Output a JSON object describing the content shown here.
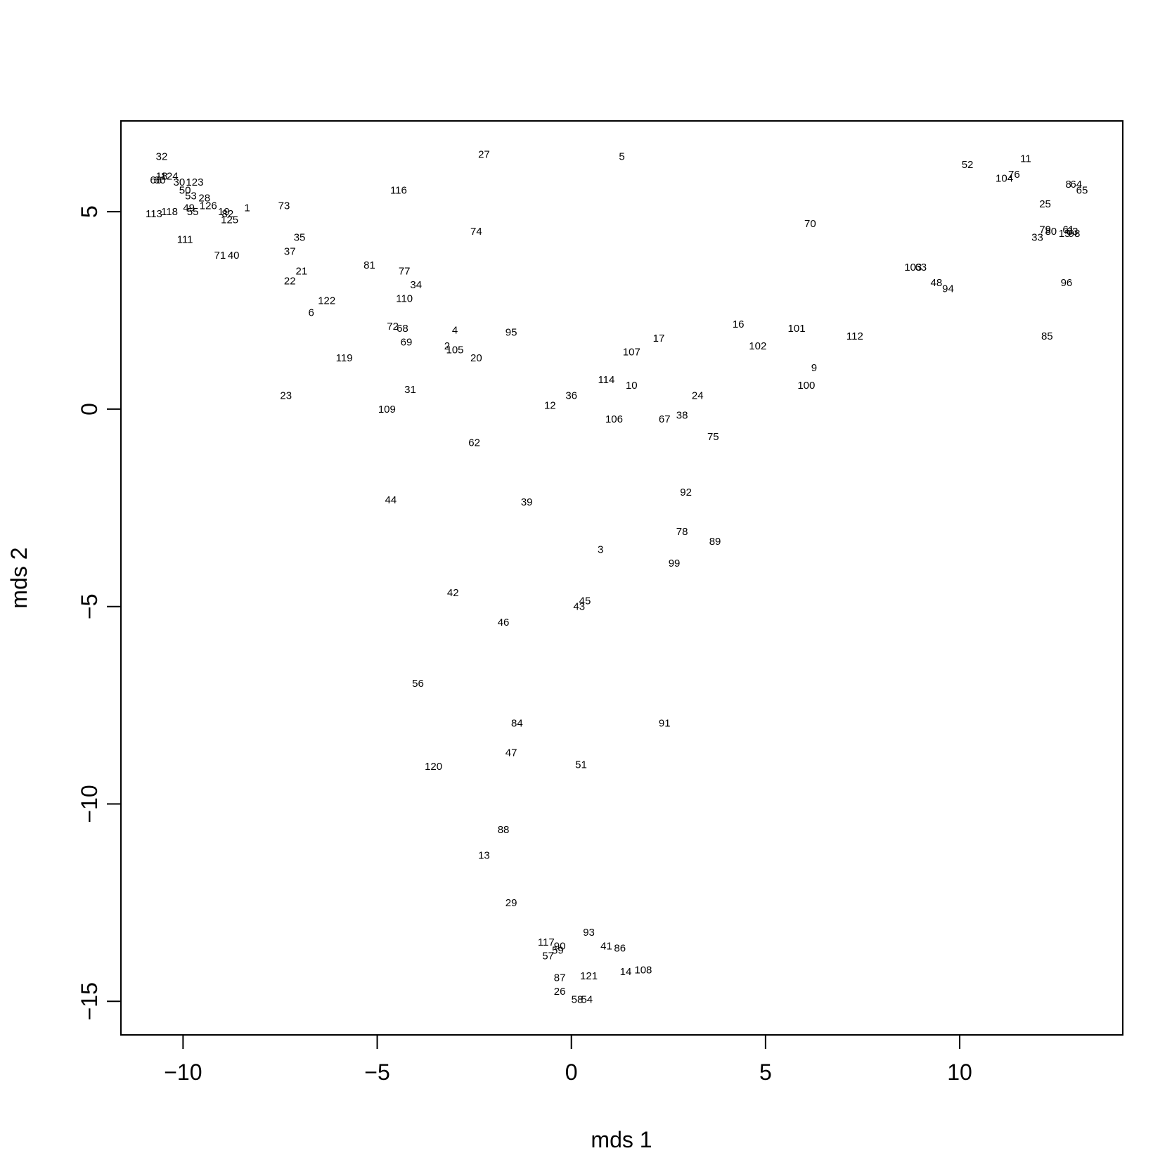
{
  "chart_data": {
    "type": "scatter",
    "title": "",
    "xlabel": "mds 1",
    "ylabel": "mds 2",
    "xlim": [
      -11.6,
      14.2
    ],
    "ylim": [
      -15.85,
      7.3
    ],
    "x_ticks": [
      -10,
      -5,
      0,
      5,
      10
    ],
    "y_ticks": [
      -15,
      -10,
      -5,
      0,
      5
    ],
    "x_tick_labels": [
      "−10",
      "−5",
      "0",
      "5",
      "10"
    ],
    "y_tick_labels": [
      "−15",
      "−10",
      "−5",
      "0",
      "5"
    ],
    "grid": false,
    "marker": "text labels",
    "points": [
      {
        "label": "1",
        "x": -8.35,
        "y": 5.1
      },
      {
        "label": "2",
        "x": -3.2,
        "y": 1.6
      },
      {
        "label": "3",
        "x": 0.75,
        "y": -3.55
      },
      {
        "label": "4",
        "x": -3.0,
        "y": 2.0
      },
      {
        "label": "5",
        "x": 1.3,
        "y": 6.4
      },
      {
        "label": "6",
        "x": -6.7,
        "y": 2.45
      },
      {
        "label": "8",
        "x": 12.8,
        "y": 5.7
      },
      {
        "label": "9",
        "x": 6.25,
        "y": 1.05
      },
      {
        "label": "10",
        "x": 1.55,
        "y": 0.6
      },
      {
        "label": "11",
        "x": 11.7,
        "y": 6.35
      },
      {
        "label": "12",
        "x": -0.55,
        "y": 0.1
      },
      {
        "label": "13",
        "x": -2.25,
        "y": -11.3
      },
      {
        "label": "14",
        "x": 1.4,
        "y": -14.25
      },
      {
        "label": "15",
        "x": 12.7,
        "y": 4.45
      },
      {
        "label": "16",
        "x": 4.3,
        "y": 2.15
      },
      {
        "label": "17",
        "x": 2.25,
        "y": 1.8
      },
      {
        "label": "18",
        "x": -10.55,
        "y": 5.9
      },
      {
        "label": "19",
        "x": -8.95,
        "y": 5.0
      },
      {
        "label": "20",
        "x": -2.45,
        "y": 1.3
      },
      {
        "label": "21",
        "x": -6.95,
        "y": 3.5
      },
      {
        "label": "22",
        "x": -7.25,
        "y": 3.25
      },
      {
        "label": "23",
        "x": -7.35,
        "y": 0.35
      },
      {
        "label": "24",
        "x": 3.25,
        "y": 0.35
      },
      {
        "label": "25",
        "x": 12.2,
        "y": 5.2
      },
      {
        "label": "26",
        "x": -0.3,
        "y": -14.75
      },
      {
        "label": "27",
        "x": -2.25,
        "y": 6.45
      },
      {
        "label": "28",
        "x": -9.45,
        "y": 5.35
      },
      {
        "label": "29",
        "x": -1.55,
        "y": -12.5
      },
      {
        "label": "30",
        "x": -10.1,
        "y": 5.75
      },
      {
        "label": "31",
        "x": -4.15,
        "y": 0.5
      },
      {
        "label": "32",
        "x": -10.55,
        "y": 6.4
      },
      {
        "label": "33",
        "x": 12.0,
        "y": 4.35
      },
      {
        "label": "34",
        "x": -4.0,
        "y": 3.15
      },
      {
        "label": "35",
        "x": -7.0,
        "y": 4.35
      },
      {
        "label": "36",
        "x": 0.0,
        "y": 0.35
      },
      {
        "label": "37",
        "x": -7.25,
        "y": 4.0
      },
      {
        "label": "38",
        "x": 2.85,
        "y": -0.15
      },
      {
        "label": "39",
        "x": -1.15,
        "y": -2.35
      },
      {
        "label": "40",
        "x": -8.7,
        "y": 3.9
      },
      {
        "label": "41",
        "x": 0.9,
        "y": -13.6
      },
      {
        "label": "42",
        "x": -3.05,
        "y": -4.65
      },
      {
        "label": "43",
        "x": 0.2,
        "y": -5.0
      },
      {
        "label": "44",
        "x": -4.65,
        "y": -2.3
      },
      {
        "label": "45",
        "x": 0.35,
        "y": -4.85
      },
      {
        "label": "46",
        "x": -1.75,
        "y": -5.4
      },
      {
        "label": "47",
        "x": -1.55,
        "y": -8.7
      },
      {
        "label": "48",
        "x": 9.4,
        "y": 3.2
      },
      {
        "label": "49",
        "x": -9.85,
        "y": 5.1
      },
      {
        "label": "50",
        "x": -9.95,
        "y": 5.55
      },
      {
        "label": "51",
        "x": 0.25,
        "y": -9.0
      },
      {
        "label": "52",
        "x": 10.2,
        "y": 6.2
      },
      {
        "label": "53",
        "x": -9.8,
        "y": 5.4
      },
      {
        "label": "54",
        "x": 0.4,
        "y": -14.95
      },
      {
        "label": "55",
        "x": -9.75,
        "y": 5.0
      },
      {
        "label": "56",
        "x": -3.95,
        "y": -6.95
      },
      {
        "label": "57",
        "x": -0.6,
        "y": -13.85
      },
      {
        "label": "58",
        "x": 0.15,
        "y": -14.95
      },
      {
        "label": "59",
        "x": -0.35,
        "y": -13.7
      },
      {
        "label": "60",
        "x": -10.6,
        "y": 5.8
      },
      {
        "label": "61",
        "x": 12.8,
        "y": 4.55
      },
      {
        "label": "62",
        "x": -2.5,
        "y": -0.85
      },
      {
        "label": "63",
        "x": 9.0,
        "y": 3.6
      },
      {
        "label": "64",
        "x": 13.0,
        "y": 5.7
      },
      {
        "label": "65",
        "x": 13.15,
        "y": 5.55
      },
      {
        "label": "66",
        "x": -10.7,
        "y": 5.8
      },
      {
        "label": "67",
        "x": 2.4,
        "y": -0.25
      },
      {
        "label": "68",
        "x": -4.35,
        "y": 2.05
      },
      {
        "label": "69",
        "x": -4.25,
        "y": 1.7
      },
      {
        "label": "70",
        "x": 6.15,
        "y": 4.7
      },
      {
        "label": "71",
        "x": -9.05,
        "y": 3.9
      },
      {
        "label": "72",
        "x": -4.6,
        "y": 2.1
      },
      {
        "label": "73",
        "x": -7.4,
        "y": 5.15
      },
      {
        "label": "74",
        "x": -2.45,
        "y": 4.5
      },
      {
        "label": "75",
        "x": 3.65,
        "y": -0.7
      },
      {
        "label": "76",
        "x": 11.4,
        "y": 5.95
      },
      {
        "label": "77",
        "x": -4.3,
        "y": 3.5
      },
      {
        "label": "78",
        "x": 2.85,
        "y": -3.1
      },
      {
        "label": "79",
        "x": 12.2,
        "y": 4.55
      },
      {
        "label": "80",
        "x": 12.35,
        "y": 4.5
      },
      {
        "label": "81",
        "x": -5.2,
        "y": 3.65
      },
      {
        "label": "82",
        "x": -8.85,
        "y": 4.95
      },
      {
        "label": "83",
        "x": 12.9,
        "y": 4.5
      },
      {
        "label": "84",
        "x": -1.4,
        "y": -7.95
      },
      {
        "label": "85",
        "x": 12.25,
        "y": 1.85
      },
      {
        "label": "86",
        "x": 1.25,
        "y": -13.65
      },
      {
        "label": "87",
        "x": -0.3,
        "y": -14.4
      },
      {
        "label": "88",
        "x": -1.75,
        "y": -10.65
      },
      {
        "label": "89",
        "x": 3.7,
        "y": -3.35
      },
      {
        "label": "90",
        "x": -0.3,
        "y": -13.6
      },
      {
        "label": "91",
        "x": 2.4,
        "y": -7.95
      },
      {
        "label": "92",
        "x": 2.95,
        "y": -2.1
      },
      {
        "label": "93",
        "x": 0.45,
        "y": -13.25
      },
      {
        "label": "94",
        "x": 9.7,
        "y": 3.05
      },
      {
        "label": "95",
        "x": -1.55,
        "y": 1.95
      },
      {
        "label": "96",
        "x": 12.75,
        "y": 3.2
      },
      {
        "label": "98",
        "x": 12.95,
        "y": 4.45
      },
      {
        "label": "99",
        "x": 2.65,
        "y": -3.9
      },
      {
        "label": "100",
        "x": 6.05,
        "y": 0.6
      },
      {
        "label": "101",
        "x": 5.8,
        "y": 2.05
      },
      {
        "label": "102",
        "x": 4.8,
        "y": 1.6
      },
      {
        "label": "103",
        "x": 8.8,
        "y": 3.6
      },
      {
        "label": "104",
        "x": 11.15,
        "y": 5.85
      },
      {
        "label": "105",
        "x": -3.0,
        "y": 1.5
      },
      {
        "label": "106",
        "x": 1.1,
        "y": -0.25
      },
      {
        "label": "107",
        "x": 1.55,
        "y": 1.45
      },
      {
        "label": "108",
        "x": 1.85,
        "y": -14.2
      },
      {
        "label": "109",
        "x": -4.75,
        "y": 0.0
      },
      {
        "label": "110",
        "x": -4.3,
        "y": 2.8
      },
      {
        "label": "111",
        "x": -9.95,
        "y": 4.3
      },
      {
        "label": "112",
        "x": 7.3,
        "y": 1.85
      },
      {
        "label": "113",
        "x": -10.75,
        "y": 4.95
      },
      {
        "label": "114",
        "x": 0.9,
        "y": 0.75
      },
      {
        "label": "116",
        "x": -4.45,
        "y": 5.55
      },
      {
        "label": "117",
        "x": -0.65,
        "y": -13.5
      },
      {
        "label": "118",
        "x": -10.35,
        "y": 5.0
      },
      {
        "label": "119",
        "x": -5.85,
        "y": 1.3
      },
      {
        "label": "120",
        "x": -3.55,
        "y": -9.05
      },
      {
        "label": "121",
        "x": 0.45,
        "y": -14.35
      },
      {
        "label": "122",
        "x": -6.3,
        "y": 2.75
      },
      {
        "label": "123",
        "x": -9.7,
        "y": 5.75
      },
      {
        "label": "124",
        "x": -10.35,
        "y": 5.9
      },
      {
        "label": "125",
        "x": -8.8,
        "y": 4.8
      },
      {
        "label": "126",
        "x": -9.35,
        "y": 5.15
      }
    ]
  }
}
